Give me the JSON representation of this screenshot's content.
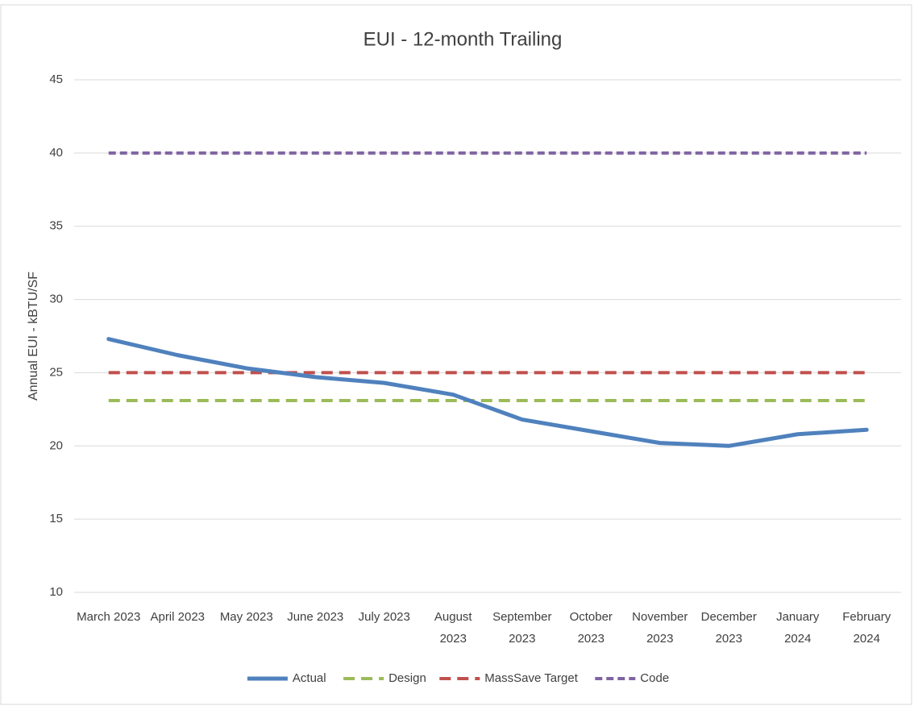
{
  "chart_data": {
    "type": "line",
    "title": "EUI - 12-month Trailing",
    "y_label": "Annual EUI - kBTU/SF",
    "categories": [
      "March 2023",
      "April 2023",
      "May 2023",
      "June 2023",
      "July 2023",
      "August 2023",
      "September 2023",
      "October 2023",
      "November 2023",
      "December 2023",
      "January 2024",
      "February 2024"
    ],
    "series": [
      {
        "name": "Actual",
        "color": "#4f81bd",
        "style": "solid",
        "values": [
          27.3,
          26.2,
          25.3,
          24.7,
          24.3,
          23.5,
          21.8,
          21.0,
          20.2,
          20.0,
          20.8,
          21.1
        ]
      },
      {
        "name": "Design",
        "color": "#9bbb59",
        "style": "dashed",
        "values": [
          23.1,
          23.1,
          23.1,
          23.1,
          23.1,
          23.1,
          23.1,
          23.1,
          23.1,
          23.1,
          23.1,
          23.1
        ]
      },
      {
        "name": "MassSave Target",
        "color": "#c0504d",
        "style": "dashed",
        "values": [
          25,
          25,
          25,
          25,
          25,
          25,
          25,
          25,
          25,
          25,
          25,
          25
        ]
      },
      {
        "name": "Code",
        "color": "#8064a2",
        "style": "dotted",
        "values": [
          40,
          40,
          40,
          40,
          40,
          40,
          40,
          40,
          40,
          40,
          40,
          40
        ]
      }
    ],
    "ylim": [
      10,
      45
    ],
    "yticks": [
      10,
      15,
      20,
      25,
      30,
      35,
      40,
      45
    ],
    "grid": true,
    "legend": "bottom"
  }
}
